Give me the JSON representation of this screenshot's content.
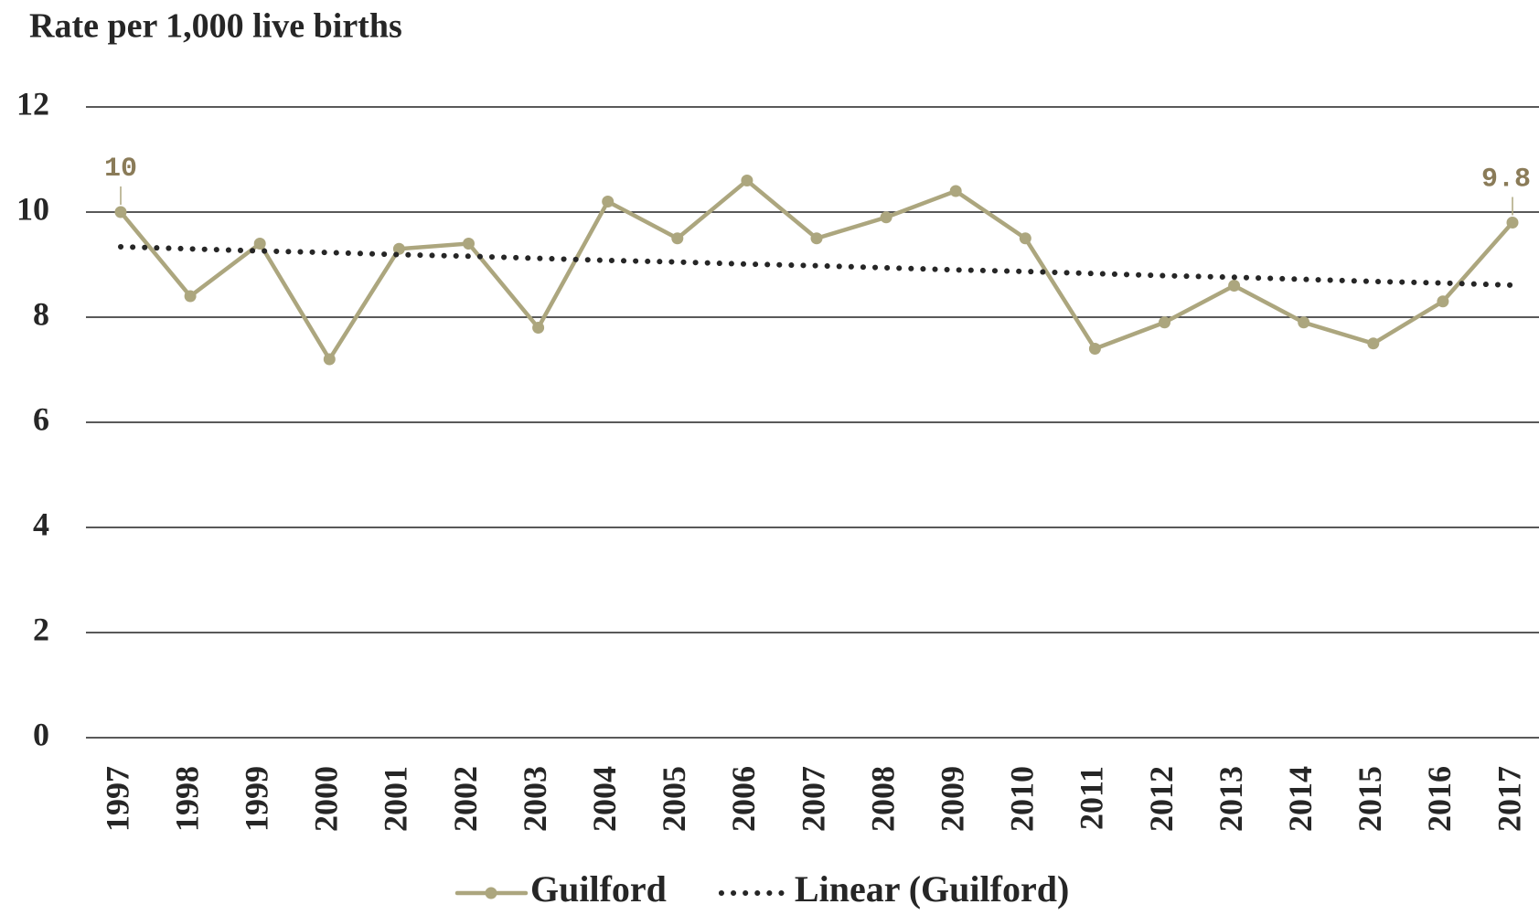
{
  "chart_data": {
    "type": "line",
    "title": "Rate per 1,000 live births",
    "categories": [
      "1997",
      "1998",
      "1999",
      "2000",
      "2001",
      "2002",
      "2003",
      "2004",
      "2005",
      "2006",
      "2007",
      "2008",
      "2009",
      "2010",
      "2011",
      "2012",
      "2013",
      "2014",
      "2015",
      "2016",
      "2017"
    ],
    "series": [
      {
        "name": "Guilford",
        "color": "#aca67e",
        "style": "solid-markers",
        "values": [
          10,
          8.4,
          9.4,
          7.2,
          9.3,
          9.4,
          7.8,
          10.2,
          9.5,
          10.6,
          9.5,
          9.9,
          10.4,
          9.5,
          7.4,
          7.9,
          8.6,
          7.9,
          7.5,
          8.3,
          9.8
        ],
        "value_labels": [
          "10",
          null,
          null,
          null,
          null,
          null,
          null,
          null,
          null,
          null,
          null,
          null,
          null,
          null,
          null,
          null,
          null,
          null,
          null,
          null,
          "9.8"
        ]
      },
      {
        "name": "Linear (Guilford)",
        "color": "#262626",
        "style": "dotted",
        "values": [
          9.34,
          9.3,
          9.26,
          9.23,
          9.19,
          9.16,
          9.12,
          9.08,
          9.05,
          9.01,
          8.98,
          8.94,
          8.9,
          8.87,
          8.83,
          8.79,
          8.76,
          8.72,
          8.68,
          8.65,
          8.61
        ]
      }
    ],
    "ylim": [
      0,
      12
    ],
    "yticks": [
      0,
      2,
      4,
      6,
      8,
      10,
      12
    ],
    "grid": true,
    "legend": "bottom"
  }
}
